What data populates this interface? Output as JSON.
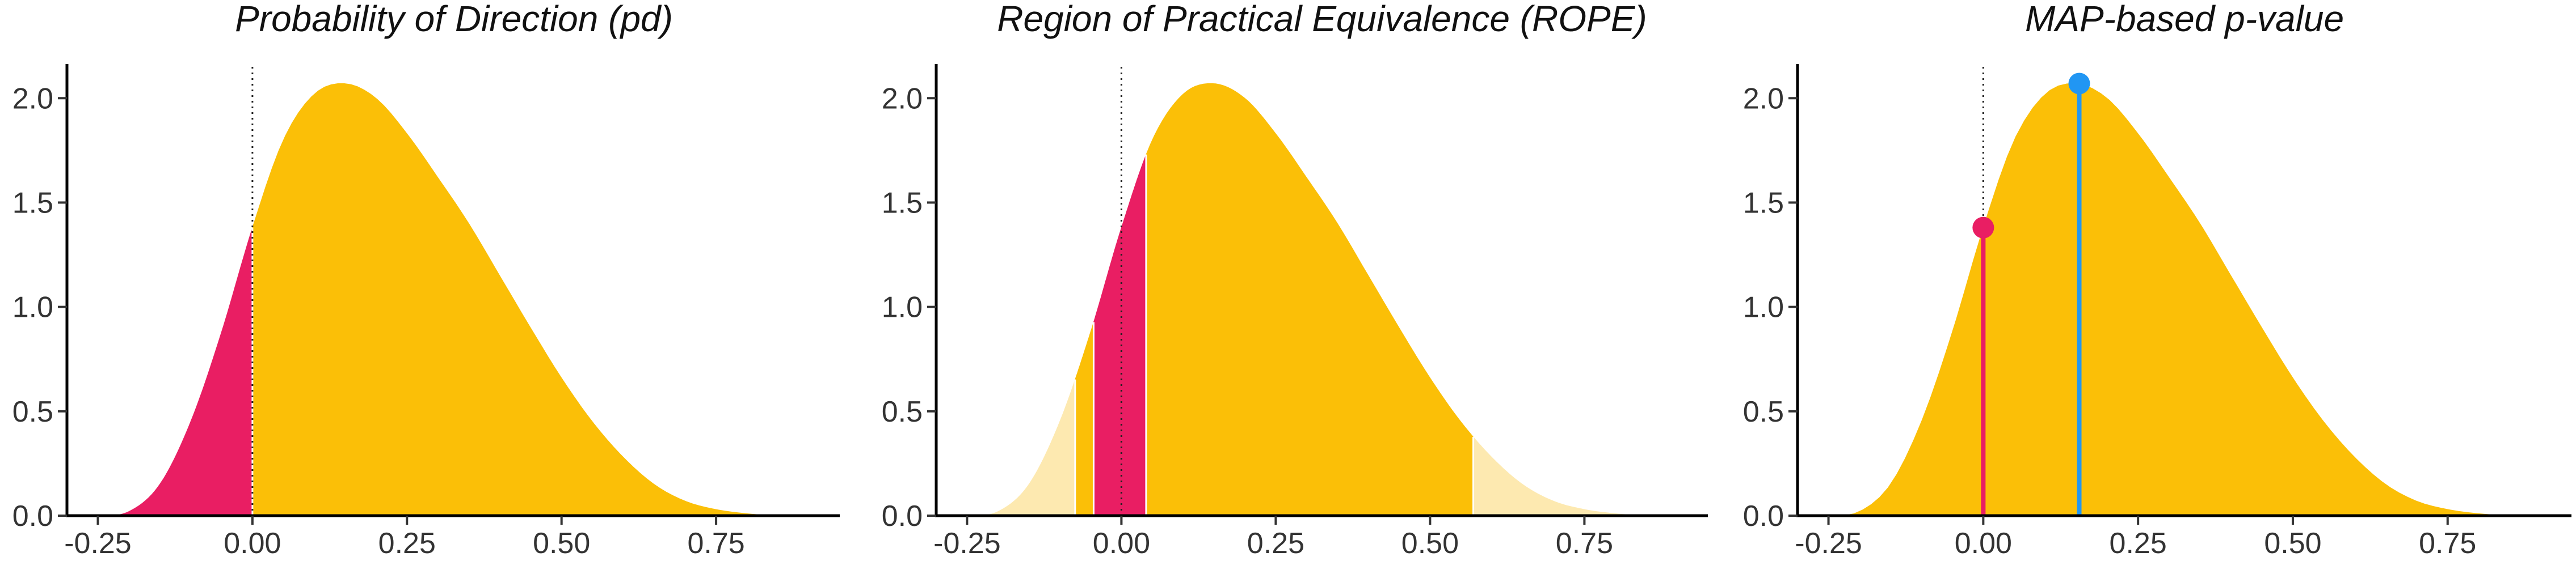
{
  "chart_data": [
    {
      "type": "area",
      "title": "Probability of Direction (pd)",
      "xticks": [
        "-0.25",
        "0.00",
        "0.25",
        "0.50",
        "0.75"
      ],
      "yticks": [
        "0.0",
        "0.5",
        "1.0",
        "1.5",
        "2.0"
      ],
      "xlim": [
        -0.3,
        0.95
      ],
      "ylim": [
        0,
        2.15
      ],
      "density_curve": {
        "x": [
          -0.25,
          -0.2,
          -0.15,
          -0.1,
          -0.05,
          0.0,
          0.05,
          0.1,
          0.15,
          0.2,
          0.25,
          0.3,
          0.35,
          0.4,
          0.45,
          0.5,
          0.55,
          0.6,
          0.65,
          0.7,
          0.75,
          0.8,
          0.85
        ],
        "y": [
          0.0,
          0.02,
          0.15,
          0.45,
          0.88,
          1.38,
          1.8,
          2.02,
          2.07,
          2.0,
          1.83,
          1.62,
          1.4,
          1.15,
          0.9,
          0.66,
          0.45,
          0.28,
          0.15,
          0.07,
          0.03,
          0.01,
          0.0
        ]
      },
      "regions": [
        {
          "from": -0.25,
          "to": 0.0,
          "color": "#e91e63"
        },
        {
          "from": 0.0,
          "to": 0.85,
          "color": "#fbbf07"
        }
      ],
      "reference_line_x": 0.0
    },
    {
      "type": "area",
      "title": "Region of Practical Equivalence (ROPE)",
      "xticks": [
        "-0.25",
        "0.00",
        "0.25",
        "0.50",
        "0.75"
      ],
      "yticks": [
        "0.0",
        "0.5",
        "1.0",
        "1.5",
        "2.0"
      ],
      "xlim": [
        -0.3,
        0.95
      ],
      "ylim": [
        0,
        2.15
      ],
      "density_curve": {
        "x": [
          -0.25,
          -0.2,
          -0.15,
          -0.1,
          -0.05,
          0.0,
          0.05,
          0.1,
          0.15,
          0.2,
          0.25,
          0.3,
          0.35,
          0.4,
          0.45,
          0.5,
          0.55,
          0.6,
          0.65,
          0.7,
          0.75,
          0.8,
          0.85
        ],
        "y": [
          0.0,
          0.02,
          0.15,
          0.45,
          0.88,
          1.38,
          1.8,
          2.02,
          2.07,
          2.0,
          1.83,
          1.62,
          1.4,
          1.15,
          0.9,
          0.66,
          0.45,
          0.28,
          0.15,
          0.07,
          0.03,
          0.01,
          0.0
        ]
      },
      "regions": [
        {
          "from": -0.25,
          "to": -0.075,
          "color": "#fde9b0"
        },
        {
          "from": -0.075,
          "to": -0.045,
          "color": "#fbbf07"
        },
        {
          "from": -0.045,
          "to": 0.04,
          "color": "#e91e63"
        },
        {
          "from": 0.04,
          "to": 0.57,
          "color": "#fbbf07"
        },
        {
          "from": 0.57,
          "to": 0.85,
          "color": "#fde9b0"
        }
      ],
      "reference_line_x": 0.0
    },
    {
      "type": "area",
      "title": "MAP-based p-value",
      "xticks": [
        "-0.25",
        "0.00",
        "0.25",
        "0.50",
        "0.75"
      ],
      "yticks": [
        "0.0",
        "0.5",
        "1.0",
        "1.5",
        "2.0"
      ],
      "xlim": [
        -0.3,
        0.95
      ],
      "ylim": [
        0,
        2.15
      ],
      "density_curve": {
        "x": [
          -0.25,
          -0.2,
          -0.15,
          -0.1,
          -0.05,
          0.0,
          0.05,
          0.1,
          0.15,
          0.2,
          0.25,
          0.3,
          0.35,
          0.4,
          0.45,
          0.5,
          0.55,
          0.6,
          0.65,
          0.7,
          0.75,
          0.8,
          0.85
        ],
        "y": [
          0.0,
          0.02,
          0.15,
          0.45,
          0.88,
          1.38,
          1.8,
          2.02,
          2.07,
          2.0,
          1.83,
          1.62,
          1.4,
          1.15,
          0.9,
          0.66,
          0.45,
          0.28,
          0.15,
          0.07,
          0.03,
          0.01,
          0.0
        ]
      },
      "regions": [
        {
          "from": -0.25,
          "to": 0.85,
          "color": "#fbbf07"
        }
      ],
      "reference_line_x": 0.0,
      "lollipops": [
        {
          "x": 0.0,
          "y": 1.38,
          "color": "#e91e63"
        },
        {
          "x": 0.155,
          "y": 2.07,
          "color": "#2196f3"
        }
      ]
    }
  ]
}
